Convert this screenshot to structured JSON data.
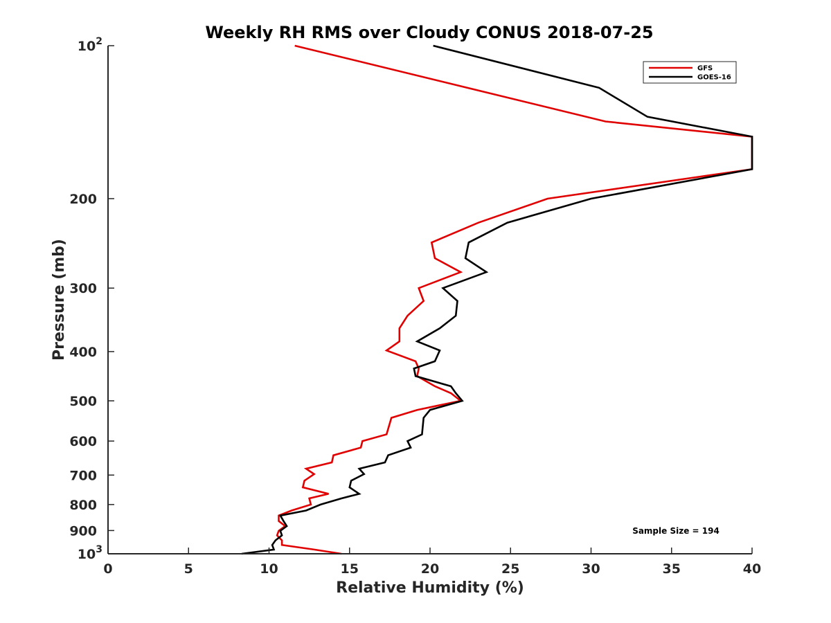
{
  "chart_data": {
    "type": "line",
    "title": "Weekly RH RMS over Cloudy CONUS 2018-07-25",
    "xlabel": "Relative Humidity (%)",
    "ylabel": "Pressure (mb)",
    "xlim": [
      0,
      40
    ],
    "ylim": [
      100,
      1000
    ],
    "yscale": "log",
    "y_reversed": true,
    "grid": false,
    "legend_position": "top-right",
    "x_ticks": [
      "0",
      "5",
      "10",
      "15",
      "20",
      "25",
      "30",
      "35",
      "40"
    ],
    "y_ticks": [
      {
        "value": 100,
        "label": "10",
        "exp": "2"
      },
      {
        "value": 200,
        "label": "200"
      },
      {
        "value": 300,
        "label": "300"
      },
      {
        "value": 400,
        "label": "400"
      },
      {
        "value": 500,
        "label": "500"
      },
      {
        "value": 600,
        "label": "600"
      },
      {
        "value": 700,
        "label": "700"
      },
      {
        "value": 800,
        "label": "800"
      },
      {
        "value": 900,
        "label": "900"
      },
      {
        "value": 1000,
        "label": "10",
        "exp": "3"
      }
    ],
    "series": [
      {
        "name": "GFS",
        "color": "#e00000",
        "points": [
          [
            11.6,
            100
          ],
          [
            30.9,
            141
          ],
          [
            40.0,
            151
          ],
          [
            40.0,
            175
          ],
          [
            27.3,
            200
          ],
          [
            23.0,
            223
          ],
          [
            20.1,
            244
          ],
          [
            20.3,
            262
          ],
          [
            21.9,
            279
          ],
          [
            19.3,
            300
          ],
          [
            19.6,
            318
          ],
          [
            18.6,
            340
          ],
          [
            18.1,
            360
          ],
          [
            18.1,
            382
          ],
          [
            17.3,
            398
          ],
          [
            19.1,
            418
          ],
          [
            19.3,
            432
          ],
          [
            19.2,
            447
          ],
          [
            20.3,
            468
          ],
          [
            21.3,
            483
          ],
          [
            21.9,
            500
          ],
          [
            19.2,
            521
          ],
          [
            17.6,
            540
          ],
          [
            17.3,
            582
          ],
          [
            15.8,
            600
          ],
          [
            15.7,
            618
          ],
          [
            14.0,
            640
          ],
          [
            13.9,
            661
          ],
          [
            12.3,
            680
          ],
          [
            12.8,
            697
          ],
          [
            12.2,
            718
          ],
          [
            12.1,
            740
          ],
          [
            13.7,
            762
          ],
          [
            12.5,
            778
          ],
          [
            12.6,
            800
          ],
          [
            11.4,
            822
          ],
          [
            10.6,
            841
          ],
          [
            10.6,
            862
          ],
          [
            11.0,
            882
          ],
          [
            10.6,
            901
          ],
          [
            10.5,
            920
          ],
          [
            10.8,
            941
          ],
          [
            10.8,
            961
          ],
          [
            12.8,
            981
          ],
          [
            14.5,
            1000
          ]
        ]
      },
      {
        "name": "GOES-16",
        "color": "#000000",
        "points": [
          [
            20.2,
            100
          ],
          [
            30.5,
            121
          ],
          [
            33.5,
            138
          ],
          [
            40.0,
            151
          ],
          [
            40.0,
            175
          ],
          [
            30.0,
            200
          ],
          [
            24.8,
            223
          ],
          [
            22.4,
            244
          ],
          [
            22.2,
            262
          ],
          [
            23.5,
            279
          ],
          [
            20.8,
            300
          ],
          [
            21.7,
            318
          ],
          [
            21.6,
            340
          ],
          [
            20.6,
            360
          ],
          [
            19.2,
            382
          ],
          [
            20.6,
            398
          ],
          [
            20.3,
            418
          ],
          [
            19.0,
            432
          ],
          [
            19.1,
            447
          ],
          [
            21.3,
            468
          ],
          [
            21.6,
            483
          ],
          [
            22.0,
            500
          ],
          [
            20.0,
            521
          ],
          [
            19.6,
            540
          ],
          [
            19.5,
            582
          ],
          [
            18.6,
            600
          ],
          [
            18.8,
            618
          ],
          [
            17.4,
            640
          ],
          [
            17.2,
            661
          ],
          [
            15.6,
            680
          ],
          [
            15.9,
            697
          ],
          [
            15.1,
            718
          ],
          [
            15.0,
            740
          ],
          [
            15.6,
            762
          ],
          [
            14.5,
            778
          ],
          [
            13.2,
            800
          ],
          [
            12.3,
            822
          ],
          [
            10.7,
            841
          ],
          [
            10.9,
            862
          ],
          [
            11.1,
            882
          ],
          [
            10.7,
            901
          ],
          [
            10.8,
            920
          ],
          [
            10.4,
            941
          ],
          [
            10.2,
            961
          ],
          [
            10.3,
            981
          ],
          [
            8.3,
            1000
          ]
        ]
      }
    ],
    "annotation": "Sample Size = 194"
  }
}
